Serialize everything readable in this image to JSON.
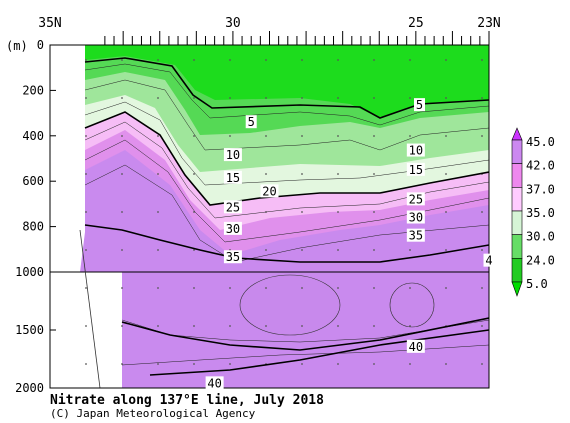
{
  "chart_data": {
    "type": "contour",
    "title": "Nitrate along 137°E line, July 2018",
    "credit": "(C) Japan Meteorological Agency",
    "y_unit_label": "(m)",
    "x_axis": {
      "range_lat_N": [
        35,
        23
      ],
      "tick_labels": [
        "35N",
        "30",
        "25",
        "23N"
      ],
      "tick_values": [
        35,
        30,
        25,
        23
      ]
    },
    "y_axis": {
      "range_depth_m": [
        0,
        2000
      ],
      "tick_labels": [
        "0",
        "200",
        "400",
        "600",
        "800",
        "1000",
        "1500",
        "2000"
      ],
      "tick_values": [
        0,
        200,
        400,
        600,
        800,
        1000,
        1500,
        2000
      ],
      "break_at_m": 1000
    },
    "contour_labels": [
      {
        "text": "5",
        "lat": 29.5,
        "depth_m": 340
      },
      {
        "text": "5",
        "lat": 24.9,
        "depth_m": 265
      },
      {
        "text": "10",
        "lat": 30.0,
        "depth_m": 485
      },
      {
        "text": "10",
        "lat": 25.0,
        "depth_m": 465
      },
      {
        "text": "15",
        "lat": 30.0,
        "depth_m": 585
      },
      {
        "text": "15",
        "lat": 25.0,
        "depth_m": 550
      },
      {
        "text": "20",
        "lat": 29.0,
        "depth_m": 645
      },
      {
        "text": "25",
        "lat": 30.0,
        "depth_m": 715
      },
      {
        "text": "25",
        "lat": 25.0,
        "depth_m": 680
      },
      {
        "text": "30",
        "lat": 30.0,
        "depth_m": 810
      },
      {
        "text": "30",
        "lat": 25.0,
        "depth_m": 760
      },
      {
        "text": "35",
        "lat": 30.0,
        "depth_m": 935
      },
      {
        "text": "35",
        "lat": 25.0,
        "depth_m": 840
      },
      {
        "text": "4",
        "lat": 23.0,
        "depth_m": 950
      },
      {
        "text": "40",
        "lat": 25.0,
        "depth_m": 1645
      },
      {
        "text": "40",
        "lat": 30.5,
        "depth_m": 1960
      }
    ],
    "colorbar": {
      "levels": [
        "45.0",
        "42.0",
        "37.0",
        "35.0",
        "30.0",
        "24.0",
        "5.0"
      ],
      "colors": [
        "#cc33ff",
        "#cc88f0",
        "#ee88ee",
        "#ffccff",
        "#d6f5d6",
        "#66dd66",
        "#22cc22",
        "#00dd00"
      ]
    },
    "grid": true
  }
}
